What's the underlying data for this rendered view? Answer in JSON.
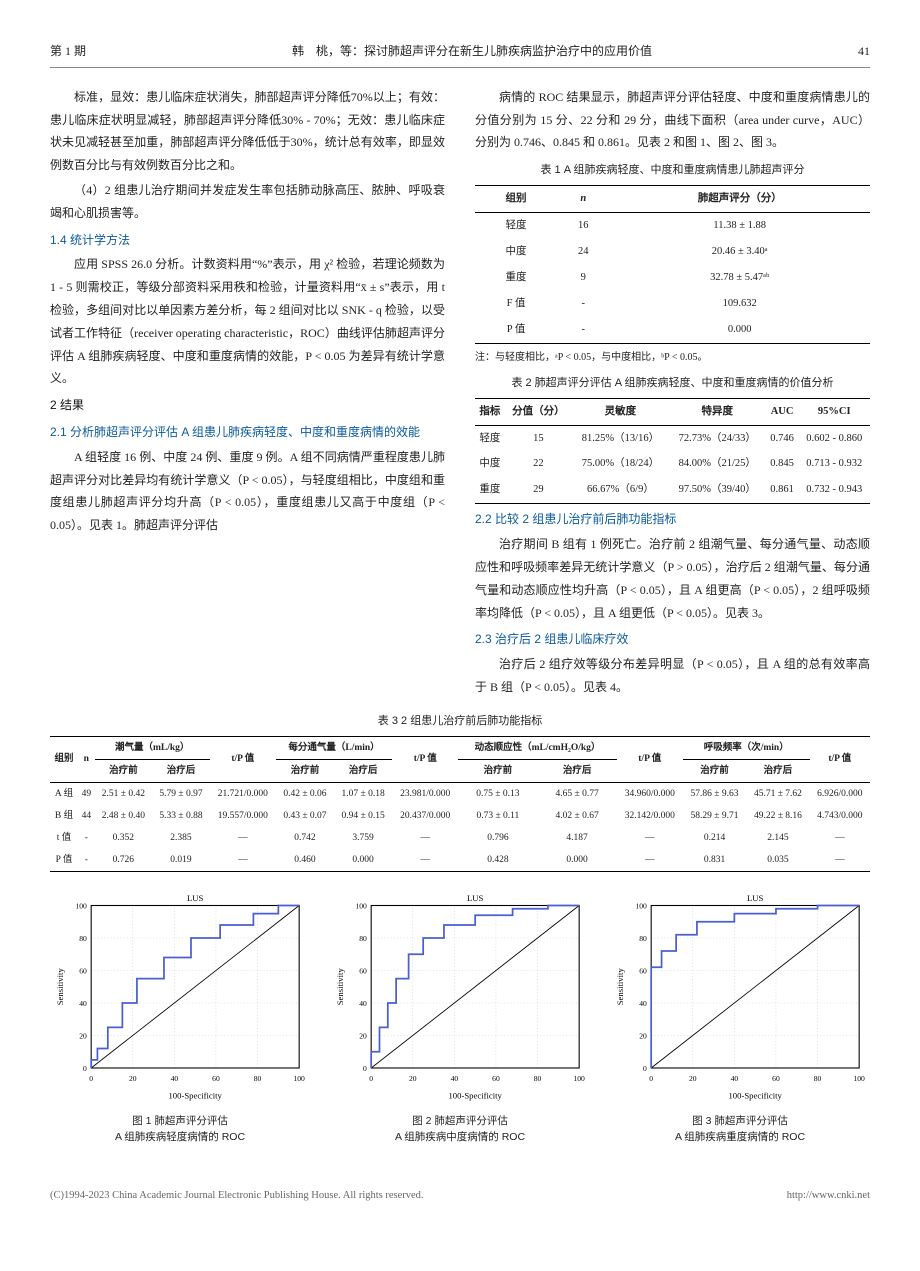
{
  "header": {
    "issue": "第 1 期",
    "running": "韩　桃，等：探讨肺超声评分在新生儿肺疾病监护治疗中的应用价值",
    "pageno": "41"
  },
  "left": {
    "p1": "标准，显效：患儿临床症状消失，肺部超声评分降低70%以上；有效：患儿临床症状明显减轻，肺部超声评分降低30% - 70%；无效：患儿临床症状未见减轻甚至加重，肺部超声评分降低低于30%，统计总有效率，即显效例数百分比与有效例数百分比之和。",
    "p2": "（4）2 组患儿治疗期间并发症发生率包括肺动脉高压、脓肿、呼吸衰竭和心肌损害等。",
    "h14": "1.4 统计学方法",
    "p3": "应用 SPSS 26.0 分析。计数资料用“%”表示，用 χ² 检验，若理论频数为 1 - 5 则需校正，等级分部资料采用秩和检验，计量资料用“x̄ ± s”表示，用 t 检验，多组间对比以单因素方差分析，每 2 组间对比以 SNK - q 检验，以受试者工作特征（receiver operating characteristic，ROC）曲线评估肺超声评分评估 A 组肺疾病轻度、中度和重度病情的效能，P < 0.05 为差异有统计学意义。",
    "h2": "2 结果",
    "h21": "2.1 分析肺超声评分评估 A 组患儿肺疾病轻度、中度和重度病情的效能",
    "p4": "A 组轻度 16 例、中度 24 例、重度 9 例。A 组不同病情严重程度患儿肺超声评分对比差异均有统计学意义（P < 0.05），与轻度组相比，中度组和重度组患儿肺超声评分均升高（P < 0.05），重度组患儿又高于中度组（P < 0.05）。见表 1。肺超声评分评估"
  },
  "right": {
    "p1": "病情的 ROC 结果显示，肺超声评分评估轻度、中度和重度病情患儿的分值分别为 15 分、22 分和 29 分，曲线下面积（area under curve，AUC）分别为 0.746、0.845 和 0.861。见表 2 和图 1、图 2、图 3。",
    "t1_title": "表 1 A 组肺疾病轻度、中度和重度病情患儿肺超声评分",
    "t1_head": [
      "组别",
      "n",
      "肺超声评分（分）"
    ],
    "t1_rows": [
      [
        "轻度",
        "16",
        "11.38 ± 1.88"
      ],
      [
        "中度",
        "24",
        "20.46 ± 3.40ᵃ"
      ],
      [
        "重度",
        "9",
        "32.78 ± 5.47ᵃᵇ"
      ],
      [
        "F 值",
        "-",
        "109.632"
      ],
      [
        "P 值",
        "-",
        "0.000"
      ]
    ],
    "note1": "注：与轻度相比，ᵃP < 0.05，与中度相比，ᵇP < 0.05。",
    "t2_title": "表 2 肺超声评分评估 A 组肺疾病轻度、中度和重度病情的价值分析",
    "t2_head": [
      "指标",
      "分值（分）",
      "灵敏度",
      "特异度",
      "AUC",
      "95%CI"
    ],
    "t2_rows": [
      [
        "轻度",
        "15",
        "81.25%（13/16）",
        "72.73%（24/33）",
        "0.746",
        "0.602 - 0.860"
      ],
      [
        "中度",
        "22",
        "75.00%（18/24）",
        "84.00%（21/25）",
        "0.845",
        "0.713 - 0.932"
      ],
      [
        "重度",
        "29",
        "66.67%（6/9）",
        "97.50%（39/40）",
        "0.861",
        "0.732 - 0.943"
      ]
    ],
    "h22": "2.2 比较 2 组患儿治疗前后肺功能指标",
    "p2": "治疗期间 B 组有 1 例死亡。治疗前 2 组潮气量、每分通气量、动态顺应性和呼吸频率差异无统计学意义（P > 0.05），治疗后 2 组潮气量、每分通气量和动态顺应性均升高（P < 0.05），且 A 组更高（P < 0.05），2 组呼吸频率均降低（P < 0.05），且 A 组更低（P < 0.05）。见表 3。",
    "h23": "2.3 治疗后 2 组患儿临床疗效",
    "p3": "治疗后 2 组疗效等级分布差异明显（P < 0.05），且 A 组的总有效率高于 B 组（P < 0.05）。见表 4。"
  },
  "t3": {
    "title": "表 3 2 组患儿治疗前后肺功能指标",
    "toph": [
      "组别",
      "n",
      "潮气量（mL/kg）",
      "t/P 值",
      "每分通气量（L/min）",
      "t/P 值",
      "动态顺应性（mL/cmH₂O/kg）",
      "t/P 值",
      "呼吸频率（次/min）",
      "t/P 值"
    ],
    "subh": [
      "治疗前",
      "治疗后",
      "治疗前",
      "治疗后",
      "治疗前",
      "治疗后",
      "治疗前",
      "治疗后"
    ],
    "rows": [
      [
        "A 组",
        "49",
        "2.51 ± 0.42",
        "5.79 ± 0.97",
        "21.721/0.000",
        "0.42 ± 0.06",
        "1.07 ± 0.18",
        "23.981/0.000",
        "0.75 ± 0.13",
        "4.65 ± 0.77",
        "34.960/0.000",
        "57.86 ± 9.63",
        "45.71 ± 7.62",
        "6.926/0.000"
      ],
      [
        "B 组",
        "44",
        "2.48 ± 0.40",
        "5.33 ± 0.88",
        "19.557/0.000",
        "0.43 ± 0.07",
        "0.94 ± 0.15",
        "20.437/0.000",
        "0.73 ± 0.11",
        "4.02 ± 0.67",
        "32.142/0.000",
        "58.29 ± 9.71",
        "49.22 ± 8.16",
        "4.743/0.000"
      ],
      [
        "t 值",
        "-",
        "0.352",
        "2.385",
        "—",
        "0.742",
        "3.759",
        "—",
        "0.796",
        "4.187",
        "—",
        "0.214",
        "2.145",
        "—"
      ],
      [
        "P 值",
        "-",
        "0.726",
        "0.019",
        "—",
        "0.460",
        "0.000",
        "—",
        "0.428",
        "0.000",
        "—",
        "0.831",
        "0.035",
        "—"
      ]
    ]
  },
  "charts": {
    "style": {
      "line_color": "#4a5fd0",
      "line_width": 1.6,
      "axis_color": "#000000",
      "grid_color": "#cccccc",
      "tick_fontsize": 7,
      "label_fontsize": 8,
      "background": "#ffffff",
      "xlabel": "100-Specificity",
      "ylabel": "Sensitivity",
      "title_inside": "LUS",
      "xlim": [
        0,
        100
      ],
      "ylim": [
        0,
        100
      ],
      "tick_step": 20
    },
    "fig1": {
      "title": "图 1 肺超声评分评估",
      "sub": "A 组肺疾病轻度病情的 ROC",
      "points": [
        [
          0,
          0
        ],
        [
          0,
          5
        ],
        [
          3,
          5
        ],
        [
          3,
          12
        ],
        [
          8,
          12
        ],
        [
          8,
          25
        ],
        [
          15,
          25
        ],
        [
          15,
          40
        ],
        [
          22,
          40
        ],
        [
          22,
          55
        ],
        [
          35,
          55
        ],
        [
          35,
          68
        ],
        [
          48,
          68
        ],
        [
          48,
          80
        ],
        [
          62,
          80
        ],
        [
          62,
          88
        ],
        [
          78,
          88
        ],
        [
          78,
          95
        ],
        [
          90,
          95
        ],
        [
          90,
          100
        ],
        [
          100,
          100
        ]
      ]
    },
    "fig2": {
      "title": "图 2 肺超声评分评估",
      "sub": "A 组肺疾病中度病情的 ROC",
      "points": [
        [
          0,
          0
        ],
        [
          0,
          10
        ],
        [
          4,
          10
        ],
        [
          4,
          25
        ],
        [
          8,
          25
        ],
        [
          8,
          40
        ],
        [
          12,
          40
        ],
        [
          12,
          55
        ],
        [
          18,
          55
        ],
        [
          18,
          70
        ],
        [
          25,
          70
        ],
        [
          25,
          80
        ],
        [
          35,
          80
        ],
        [
          35,
          88
        ],
        [
          50,
          88
        ],
        [
          50,
          94
        ],
        [
          68,
          94
        ],
        [
          68,
          98
        ],
        [
          85,
          98
        ],
        [
          85,
          100
        ],
        [
          100,
          100
        ]
      ]
    },
    "fig3": {
      "title": "图 3 肺超声评分评估",
      "sub": "A 组肺疾病重度病情的 ROC",
      "points": [
        [
          0,
          0
        ],
        [
          0,
          62
        ],
        [
          5,
          62
        ],
        [
          5,
          72
        ],
        [
          12,
          72
        ],
        [
          12,
          82
        ],
        [
          22,
          82
        ],
        [
          22,
          90
        ],
        [
          40,
          90
        ],
        [
          40,
          95
        ],
        [
          60,
          95
        ],
        [
          60,
          98
        ],
        [
          80,
          98
        ],
        [
          80,
          100
        ],
        [
          100,
          100
        ]
      ]
    }
  },
  "footer": {
    "left": "(C)1994-2023 China Academic Journal Electronic Publishing House. All rights reserved.",
    "right": "http://www.cnki.net"
  }
}
